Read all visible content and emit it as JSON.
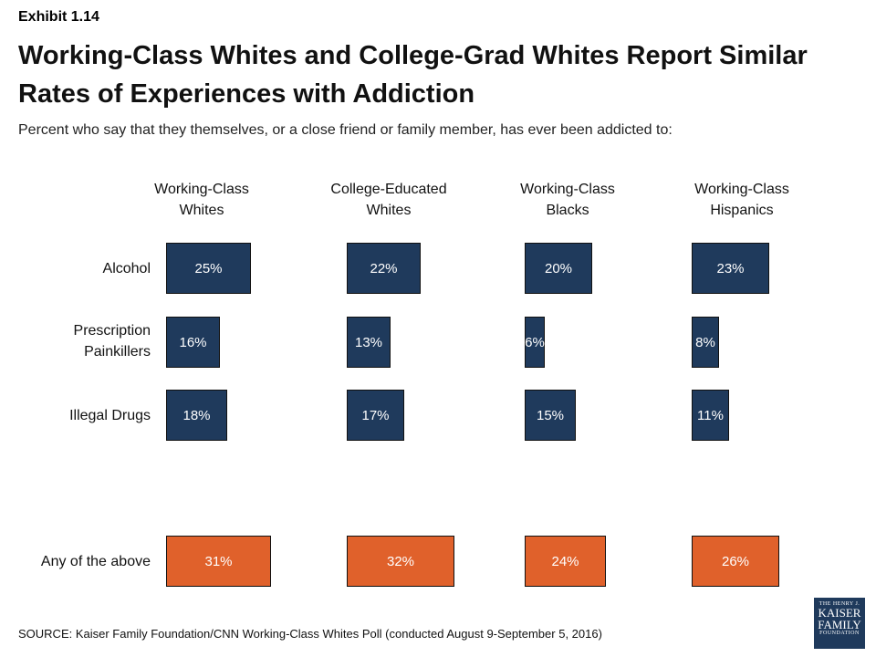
{
  "exhibit": "Exhibit 1.14",
  "title": "Working-Class Whites and College-Grad Whites Report Similar Rates of Experiences with Addiction",
  "subtitle": "Percent who say that they themselves, or a close friend or family member, has ever been addicted to:",
  "source": "SOURCE: Kaiser Family Foundation/CNN Working-Class Whites Poll (conducted August 9-September 5, 2016)",
  "logo": {
    "line1": "THE HENRY J.",
    "line2": "KAISER",
    "line3": "FAMILY",
    "line4": "FOUNDATION"
  },
  "colors": {
    "substance_bar": "#1f3a5c",
    "any_bar": "#e0612b"
  },
  "chart_data": {
    "type": "bar",
    "orientation": "horizontal",
    "layout": "small-multiples",
    "unit": "%",
    "groups": [
      {
        "name": "Working-Class Whites",
        "lines": [
          "Working-Class",
          "Whites"
        ]
      },
      {
        "name": "College-Educated Whites",
        "lines": [
          "College-Educated",
          "Whites"
        ]
      },
      {
        "name": "Working-Class Blacks",
        "lines": [
          "Working-Class",
          "Blacks"
        ]
      },
      {
        "name": "Working-Class Hispanics",
        "lines": [
          "Working-Class",
          "Hispanics"
        ]
      }
    ],
    "categories": [
      {
        "name": "Alcohol",
        "lines": [
          "Alcohol"
        ],
        "color_key": "substance_bar"
      },
      {
        "name": "Prescription Painkillers",
        "lines": [
          "Prescription",
          "Painkillers"
        ],
        "color_key": "substance_bar"
      },
      {
        "name": "Illegal Drugs",
        "lines": [
          "Illegal Drugs"
        ],
        "color_key": "substance_bar"
      },
      {
        "name": "Any of the above",
        "lines": [
          "Any of the above"
        ],
        "color_key": "any_bar"
      }
    ],
    "values": [
      [
        25,
        22,
        20,
        23
      ],
      [
        16,
        13,
        6,
        8
      ],
      [
        18,
        17,
        15,
        11
      ],
      [
        31,
        32,
        24,
        26
      ]
    ]
  }
}
